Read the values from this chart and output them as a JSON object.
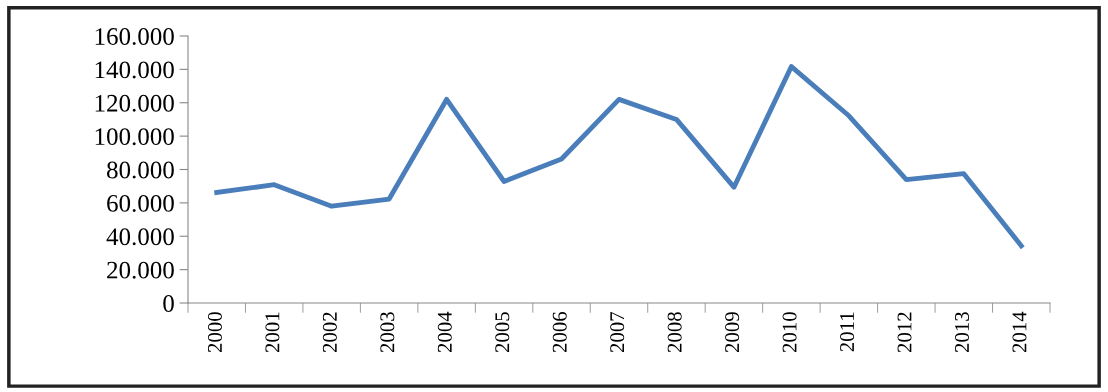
{
  "chart_data": {
    "type": "line",
    "categories": [
      "2000",
      "2001",
      "2002",
      "2003",
      "2004",
      "2005",
      "2006",
      "2007",
      "2008",
      "2009",
      "2010",
      "2011",
      "2012",
      "2013",
      "2014"
    ],
    "series": [
      {
        "color": "#4a7ebb",
        "values": [
          66200,
          70900,
          58000,
          62300,
          122000,
          72800,
          86300,
          122000,
          110000,
          69400,
          141700,
          112200,
          73900,
          77500,
          34300
        ]
      }
    ],
    "ylim": [
      0,
      160000
    ],
    "yticks": [
      0,
      {
        "value": 20000,
        "label": "20.000"
      },
      {
        "value": 40000,
        "label": "40.000"
      },
      {
        "value": 60000,
        "label": "60.000"
      },
      {
        "value": 80000,
        "label": "80.000"
      },
      {
        "value": 100000,
        "label": "100.000"
      },
      {
        "value": 120000,
        "label": "120.000"
      },
      {
        "value": 140000,
        "label": "140.000"
      },
      {
        "value": 160000,
        "label": "160.000"
      }
    ],
    "grid": false,
    "legend": false,
    "marker": "none",
    "line_style": "solid"
  }
}
